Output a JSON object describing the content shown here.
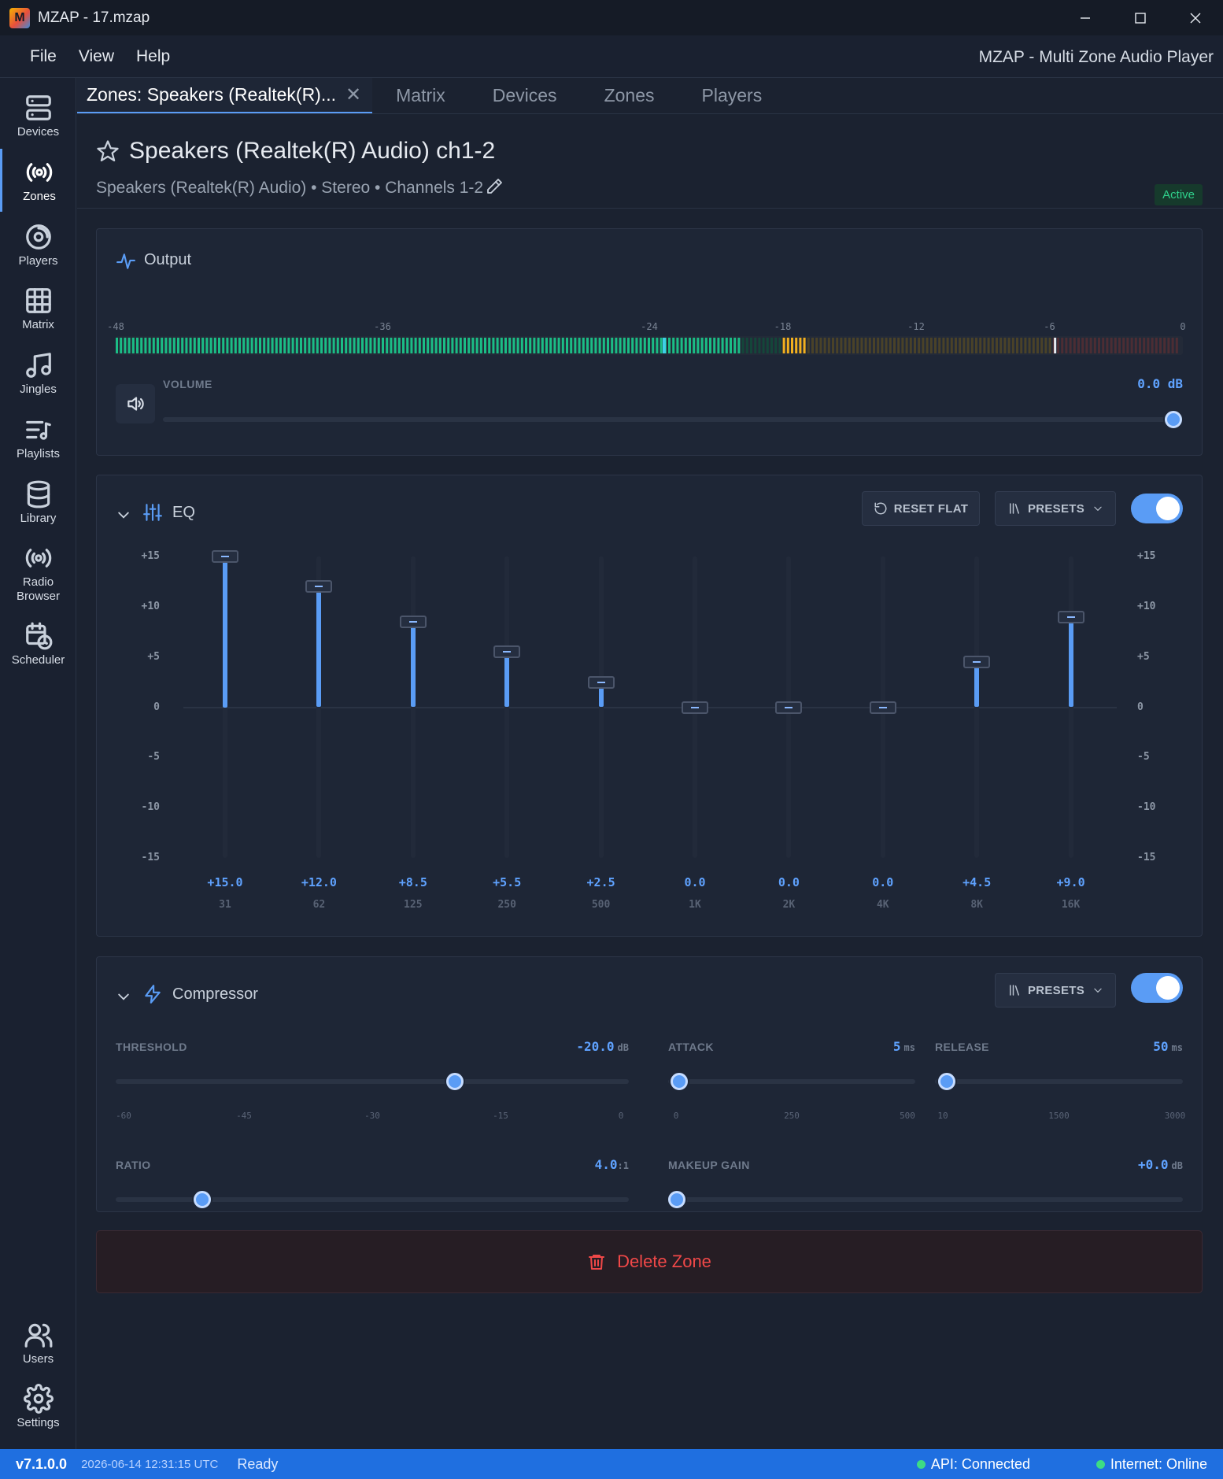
{
  "window": {
    "title": "MZAP - 17.mzap",
    "logo_text": "M"
  },
  "menu": {
    "items": [
      "File",
      "View",
      "Help"
    ],
    "app_subtitle": "MZAP - Multi Zone Audio Player"
  },
  "sidebar": {
    "items": [
      {
        "label": "Devices",
        "icon": "server-icon"
      },
      {
        "label": "Zones",
        "icon": "broadcast-icon",
        "active": true
      },
      {
        "label": "Players",
        "icon": "disc-icon"
      },
      {
        "label": "Matrix",
        "icon": "grid-icon"
      },
      {
        "label": "Jingles",
        "icon": "music-note-icon"
      },
      {
        "label": "Playlists",
        "icon": "playlist-icon"
      },
      {
        "label": "Library",
        "icon": "database-icon"
      },
      {
        "label": "Radio Browser",
        "icon": "radio-icon"
      },
      {
        "label": "Scheduler",
        "icon": "calendar-clock-icon"
      }
    ],
    "bottom": [
      {
        "label": "Users",
        "icon": "users-icon"
      },
      {
        "label": "Settings",
        "icon": "gear-icon"
      }
    ]
  },
  "tabs": [
    {
      "label": "Zones: Speakers (Realtek(R)...",
      "active": true,
      "closable": true,
      "close_glyph": "✕"
    },
    {
      "label": "Matrix"
    },
    {
      "label": "Devices"
    },
    {
      "label": "Zones"
    },
    {
      "label": "Players"
    }
  ],
  "zone": {
    "title": "Speakers (Realtek(R) Audio) ch1-2",
    "subtitle": "Speakers (Realtek(R) Audio) • Stereo • Channels 1-2",
    "status": "Active"
  },
  "output": {
    "title": "Output",
    "meter_labels": [
      "-48",
      "-36",
      "-24",
      "-18",
      "-12",
      "-6",
      "0"
    ],
    "meter_min_db": -48,
    "meter_max_db": 0,
    "meter_level_db": -20,
    "meter_peak_db": -5.8,
    "volume_label": "VOLUME",
    "volume_value": "0.0 dB",
    "volume_fraction": 1.0
  },
  "eq": {
    "title": "EQ",
    "reset_label": "RESET FLAT",
    "presets_label": "PRESETS",
    "enabled": true,
    "axis_labels": [
      "+15",
      "+10",
      "+5",
      "0",
      "-5",
      "-10",
      "-15"
    ],
    "bands": [
      {
        "freq": "31",
        "gain": 15.0,
        "label": "+15.0"
      },
      {
        "freq": "62",
        "gain": 12.0,
        "label": "+12.0"
      },
      {
        "freq": "125",
        "gain": 8.5,
        "label": "+8.5"
      },
      {
        "freq": "250",
        "gain": 5.5,
        "label": "+5.5"
      },
      {
        "freq": "500",
        "gain": 2.5,
        "label": "+2.5"
      },
      {
        "freq": "1K",
        "gain": 0.0,
        "label": "0.0"
      },
      {
        "freq": "2K",
        "gain": 0.0,
        "label": "0.0"
      },
      {
        "freq": "4K",
        "gain": 0.0,
        "label": "0.0"
      },
      {
        "freq": "8K",
        "gain": 4.5,
        "label": "+4.5"
      },
      {
        "freq": "16K",
        "gain": 9.0,
        "label": "+9.0"
      }
    ]
  },
  "compressor": {
    "title": "Compressor",
    "presets_label": "PRESETS",
    "enabled": true,
    "threshold": {
      "label": "THRESHOLD",
      "value": "-20.0",
      "unit": "dB",
      "min": -60,
      "max": 0,
      "current": -20,
      "ticks": [
        "-60",
        "-45",
        "-30",
        "-15",
        "0"
      ]
    },
    "attack": {
      "label": "ATTACK",
      "value": "5",
      "unit": "ms",
      "min": 0,
      "max": 500,
      "current": 5,
      "ticks": [
        "0",
        "250",
        "500"
      ]
    },
    "release": {
      "label": "RELEASE",
      "value": "50",
      "unit": "ms",
      "min": 10,
      "max": 3000,
      "current": 50,
      "ticks": [
        "10",
        "1500",
        "3000"
      ]
    },
    "ratio": {
      "label": "RATIO",
      "value": "4.0",
      "unit": ":1",
      "min": 1,
      "max": 20,
      "current": 4,
      "ticks": [
        "1:1",
        "4:1",
        "8:1",
        "12:1",
        "20:1"
      ]
    },
    "makeup": {
      "label": "MAKEUP GAIN",
      "value": "+0.0",
      "unit": "dB",
      "min": 0,
      "max": 30,
      "current": 0,
      "ticks": [
        "0",
        "7.5",
        "15",
        "22.5",
        "30"
      ]
    }
  },
  "delete_label": "Delete Zone",
  "statusbar": {
    "version": "v7.1.0.0",
    "timestamp": "2026-06-14 12:31:15 UTC",
    "state": "Ready",
    "api": "API: Connected",
    "internet": "Internet: Online"
  },
  "colors": {
    "accent": "#5a9cf5",
    "danger": "#f04848",
    "success": "#2fd18b",
    "statusbar": "#1f6fe0"
  }
}
